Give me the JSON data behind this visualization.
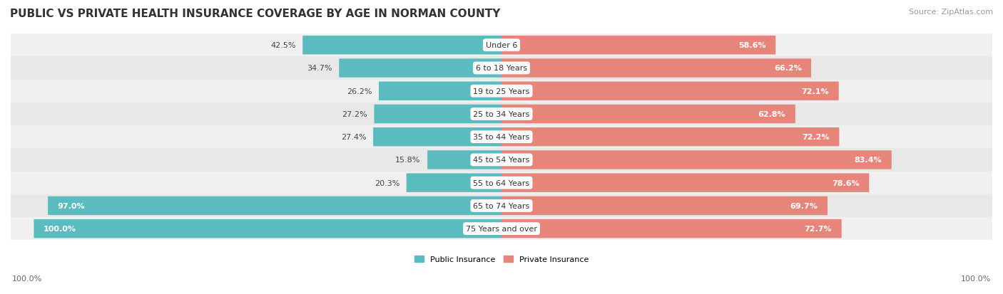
{
  "title": "PUBLIC VS PRIVATE HEALTH INSURANCE COVERAGE BY AGE IN NORMAN COUNTY",
  "source": "Source: ZipAtlas.com",
  "categories": [
    "Under 6",
    "6 to 18 Years",
    "19 to 25 Years",
    "25 to 34 Years",
    "35 to 44 Years",
    "45 to 54 Years",
    "55 to 64 Years",
    "65 to 74 Years",
    "75 Years and over"
  ],
  "public_values": [
    42.5,
    34.7,
    26.2,
    27.2,
    27.4,
    15.8,
    20.3,
    97.0,
    100.0
  ],
  "private_values": [
    58.6,
    66.2,
    72.1,
    62.8,
    72.2,
    83.4,
    78.6,
    69.7,
    72.7
  ],
  "public_color": "#5bbcbf",
  "private_color": "#e8857a",
  "row_bg_colors": [
    "#f0f0f0",
    "#e8e8e8"
  ],
  "title_fontsize": 11,
  "source_fontsize": 8,
  "label_fontsize": 8,
  "value_fontsize": 8,
  "legend_fontsize": 8,
  "max_value": 100.0,
  "background_color": "#ffffff"
}
